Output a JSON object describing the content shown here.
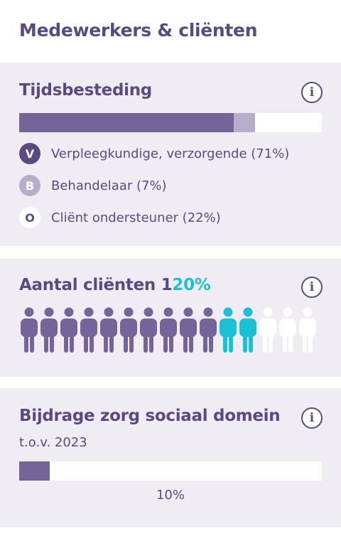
{
  "card": {
    "title": "Medewerkers & cliënten"
  },
  "time_spent": {
    "title": "Tijdsbesteding",
    "segments": [
      {
        "badge": "V",
        "label": "Verpleegkundige, verzorgende (71%)",
        "percent": 71,
        "color": "#746599"
      },
      {
        "badge": "B",
        "label": "Behandelaar (7%)",
        "percent": 7,
        "color": "#b7aecb"
      },
      {
        "badge": "O",
        "label": "Cliënt ondersteuner (22%)",
        "percent": 22,
        "color": "#ffffff"
      }
    ]
  },
  "clients": {
    "title_prefix": "Aantal cliënten 1",
    "title_accent": "20%",
    "icons_total": 15,
    "icons_base": 10,
    "icons_accent": 2,
    "colors": {
      "base": "#746599",
      "accent": "#1bbfd6",
      "empty": "#ffffff"
    }
  },
  "contribution": {
    "title": "Bijdrage zorg sociaal domein",
    "subtitle": "t.o.v. 2023",
    "percent": 10,
    "value_label": "10%"
  },
  "info_icon": "i"
}
